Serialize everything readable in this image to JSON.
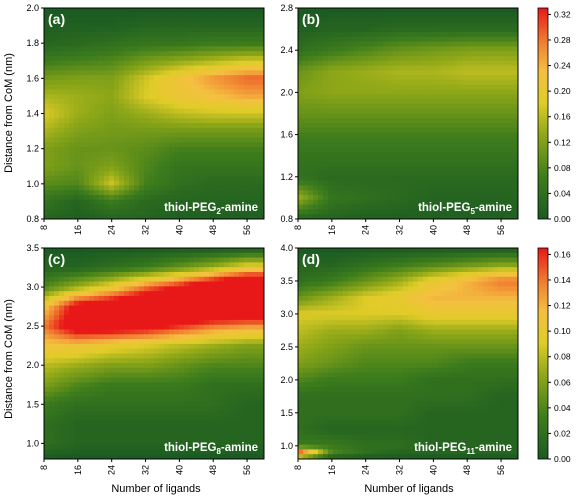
{
  "figure": {
    "ylabel": "Distance from CoM (nm)",
    "xlabel": "Number of ligands"
  },
  "chart_data": [
    {
      "type": "heatmap",
      "panel_label": "(a)",
      "annotation": {
        "prefix": "thiol-PEG",
        "subscript": "2",
        "suffix": "-amine"
      },
      "xlabel": "Number of ligands",
      "ylabel": "Distance from CoM (nm)",
      "x_ticks": [
        8,
        16,
        24,
        32,
        40,
        48,
        56
      ],
      "xlim": [
        8,
        60
      ],
      "y_ticks": [
        "0.8",
        "1.0",
        "1.2",
        "1.4",
        "1.6",
        "1.8",
        "2.0"
      ],
      "ylim": [
        0.8,
        2.0
      ],
      "colorbar": {
        "ticks": [
          "0.00",
          "0.04",
          "0.08",
          "0.12",
          "0.16",
          "0.20",
          "0.24",
          "0.28",
          "0.32"
        ],
        "range": [
          0,
          0.33
        ]
      },
      "x": [
        8,
        16,
        24,
        32,
        40,
        48,
        56
      ],
      "y": [
        0.8,
        0.9,
        1.0,
        1.1,
        1.2,
        1.3,
        1.4,
        1.5,
        1.6,
        1.7,
        1.8,
        1.9,
        2.0
      ],
      "z": [
        [
          0.02,
          0.01,
          0.02,
          0.02,
          0.01,
          0.01,
          0.01
        ],
        [
          0.05,
          0.02,
          0.06,
          0.03,
          0.02,
          0.02,
          0.02
        ],
        [
          0.09,
          0.08,
          0.17,
          0.07,
          0.04,
          0.03,
          0.03
        ],
        [
          0.12,
          0.1,
          0.12,
          0.08,
          0.05,
          0.05,
          0.05
        ],
        [
          0.12,
          0.1,
          0.1,
          0.09,
          0.07,
          0.07,
          0.07
        ],
        [
          0.15,
          0.12,
          0.11,
          0.11,
          0.11,
          0.11,
          0.11
        ],
        [
          0.18,
          0.14,
          0.12,
          0.14,
          0.16,
          0.17,
          0.17
        ],
        [
          0.15,
          0.14,
          0.13,
          0.18,
          0.21,
          0.23,
          0.25
        ],
        [
          0.11,
          0.12,
          0.12,
          0.17,
          0.22,
          0.26,
          0.29
        ],
        [
          0.06,
          0.07,
          0.08,
          0.11,
          0.13,
          0.15,
          0.17
        ],
        [
          0.02,
          0.03,
          0.04,
          0.05,
          0.05,
          0.06,
          0.06
        ],
        [
          0.01,
          0.01,
          0.01,
          0.02,
          0.02,
          0.02,
          0.02
        ],
        [
          0.0,
          0.0,
          0.0,
          0.0,
          0.0,
          0.0,
          0.0
        ]
      ]
    },
    {
      "type": "heatmap",
      "panel_label": "(b)",
      "annotation": {
        "prefix": "thiol-PEG",
        "subscript": "5",
        "suffix": "-amine"
      },
      "xlabel": "",
      "ylabel": "",
      "x_ticks": [
        8,
        16,
        24,
        32,
        40,
        48,
        56
      ],
      "xlim": [
        8,
        60
      ],
      "y_ticks": [
        "0.8",
        "1.2",
        "1.6",
        "2.0",
        "2.4",
        "2.8"
      ],
      "ylim": [
        0.8,
        2.8
      ],
      "colorbar": null,
      "x": [
        8,
        16,
        24,
        32,
        40,
        48,
        56
      ],
      "y": [
        0.8,
        1.0,
        1.2,
        1.4,
        1.6,
        1.8,
        2.0,
        2.2,
        2.4,
        2.6,
        2.8
      ],
      "z": [
        [
          0.02,
          0.02,
          0.01,
          0.01,
          0.01,
          0.01,
          0.01
        ],
        [
          0.14,
          0.05,
          0.04,
          0.03,
          0.02,
          0.02,
          0.02
        ],
        [
          0.04,
          0.03,
          0.03,
          0.03,
          0.03,
          0.03,
          0.03
        ],
        [
          0.05,
          0.05,
          0.05,
          0.05,
          0.05,
          0.05,
          0.05
        ],
        [
          0.07,
          0.07,
          0.07,
          0.07,
          0.07,
          0.07,
          0.07
        ],
        [
          0.1,
          0.1,
          0.1,
          0.1,
          0.1,
          0.1,
          0.1
        ],
        [
          0.12,
          0.13,
          0.13,
          0.13,
          0.13,
          0.13,
          0.13
        ],
        [
          0.1,
          0.13,
          0.14,
          0.15,
          0.15,
          0.16,
          0.16
        ],
        [
          0.04,
          0.06,
          0.08,
          0.1,
          0.11,
          0.12,
          0.12
        ],
        [
          0.01,
          0.02,
          0.02,
          0.03,
          0.03,
          0.03,
          0.03
        ],
        [
          0.0,
          0.0,
          0.0,
          0.0,
          0.0,
          0.0,
          0.0
        ]
      ]
    },
    {
      "type": "heatmap",
      "panel_label": "(c)",
      "annotation": {
        "prefix": "thiol-PEG",
        "subscript": "8",
        "suffix": "-amine"
      },
      "xlabel": "Number of ligands",
      "ylabel": "Distance from CoM (nm)",
      "x_ticks": [
        8,
        16,
        24,
        32,
        40,
        48,
        56
      ],
      "xlim": [
        8,
        60
      ],
      "y_ticks": [
        "1.0",
        "1.5",
        "2.0",
        "2.5",
        "3.0",
        "3.5"
      ],
      "ylim": [
        0.8,
        3.5
      ],
      "colorbar": null,
      "x": [
        8,
        16,
        24,
        32,
        40,
        48,
        56
      ],
      "y": [
        0.8,
        1.0,
        1.25,
        1.5,
        1.75,
        2.0,
        2.25,
        2.5,
        2.75,
        3.0,
        3.25,
        3.5
      ],
      "z": [
        [
          0.0,
          0.0,
          0.0,
          0.0,
          0.0,
          0.0,
          0.0
        ],
        [
          0.02,
          0.01,
          0.01,
          0.01,
          0.01,
          0.01,
          0.01
        ],
        [
          0.02,
          0.01,
          0.01,
          0.01,
          0.01,
          0.01,
          0.01
        ],
        [
          0.03,
          0.02,
          0.02,
          0.02,
          0.02,
          0.02,
          0.01
        ],
        [
          0.06,
          0.04,
          0.03,
          0.03,
          0.03,
          0.02,
          0.02
        ],
        [
          0.08,
          0.07,
          0.06,
          0.06,
          0.05,
          0.04,
          0.04
        ],
        [
          0.11,
          0.11,
          0.1,
          0.09,
          0.08,
          0.07,
          0.06
        ],
        [
          0.14,
          0.19,
          0.19,
          0.18,
          0.16,
          0.14,
          0.13
        ],
        [
          0.11,
          0.18,
          0.2,
          0.22,
          0.23,
          0.23,
          0.23
        ],
        [
          0.04,
          0.07,
          0.1,
          0.14,
          0.17,
          0.21,
          0.24
        ],
        [
          0.01,
          0.01,
          0.02,
          0.03,
          0.05,
          0.07,
          0.1
        ],
        [
          0.0,
          0.0,
          0.0,
          0.0,
          0.0,
          0.0,
          0.0
        ]
      ]
    },
    {
      "type": "heatmap",
      "panel_label": "(d)",
      "annotation": {
        "prefix": "thiol-PEG",
        "subscript": "11",
        "suffix": "-amine"
      },
      "xlabel": "Number of ligands",
      "ylabel": "",
      "x_ticks": [
        8,
        16,
        24,
        32,
        40,
        48,
        56
      ],
      "xlim": [
        8,
        60
      ],
      "y_ticks": [
        "1.0",
        "1.5",
        "2.0",
        "2.5",
        "3.0",
        "3.5",
        "4.0"
      ],
      "ylim": [
        0.8,
        4.0
      ],
      "colorbar": {
        "ticks": [
          "0.00",
          "0.02",
          "0.04",
          "0.06",
          "0.08",
          "0.10",
          "0.12",
          "0.14",
          "0.16"
        ],
        "range": [
          0,
          0.165
        ]
      },
      "x": [
        8,
        16,
        24,
        32,
        40,
        48,
        56
      ],
      "y": [
        0.8,
        0.9,
        1.0,
        1.25,
        1.5,
        1.75,
        2.0,
        2.25,
        2.5,
        2.75,
        3.0,
        3.25,
        3.5,
        3.75,
        4.0
      ],
      "z": [
        [
          0.04,
          0.0,
          0.0,
          0.0,
          0.0,
          0.0,
          0.0
        ],
        [
          0.16,
          0.04,
          0.02,
          0.01,
          0.01,
          0.01,
          0.01
        ],
        [
          0.03,
          0.03,
          0.02,
          0.02,
          0.01,
          0.01,
          0.01
        ],
        [
          0.02,
          0.01,
          0.01,
          0.01,
          0.01,
          0.01,
          0.01
        ],
        [
          0.02,
          0.02,
          0.02,
          0.02,
          0.01,
          0.01,
          0.01
        ],
        [
          0.02,
          0.02,
          0.02,
          0.02,
          0.02,
          0.02,
          0.01
        ],
        [
          0.04,
          0.03,
          0.03,
          0.03,
          0.02,
          0.02,
          0.02
        ],
        [
          0.06,
          0.05,
          0.04,
          0.04,
          0.04,
          0.03,
          0.03
        ],
        [
          0.07,
          0.06,
          0.05,
          0.05,
          0.05,
          0.05,
          0.05
        ],
        [
          0.08,
          0.07,
          0.07,
          0.06,
          0.07,
          0.07,
          0.07
        ],
        [
          0.09,
          0.09,
          0.09,
          0.09,
          0.1,
          0.1,
          0.1
        ],
        [
          0.05,
          0.07,
          0.09,
          0.1,
          0.12,
          0.12,
          0.12
        ],
        [
          0.02,
          0.03,
          0.05,
          0.07,
          0.1,
          0.12,
          0.14
        ],
        [
          0.01,
          0.01,
          0.02,
          0.03,
          0.04,
          0.05,
          0.06
        ],
        [
          0.0,
          0.0,
          0.0,
          0.0,
          0.0,
          0.0,
          0.0
        ]
      ]
    }
  ]
}
